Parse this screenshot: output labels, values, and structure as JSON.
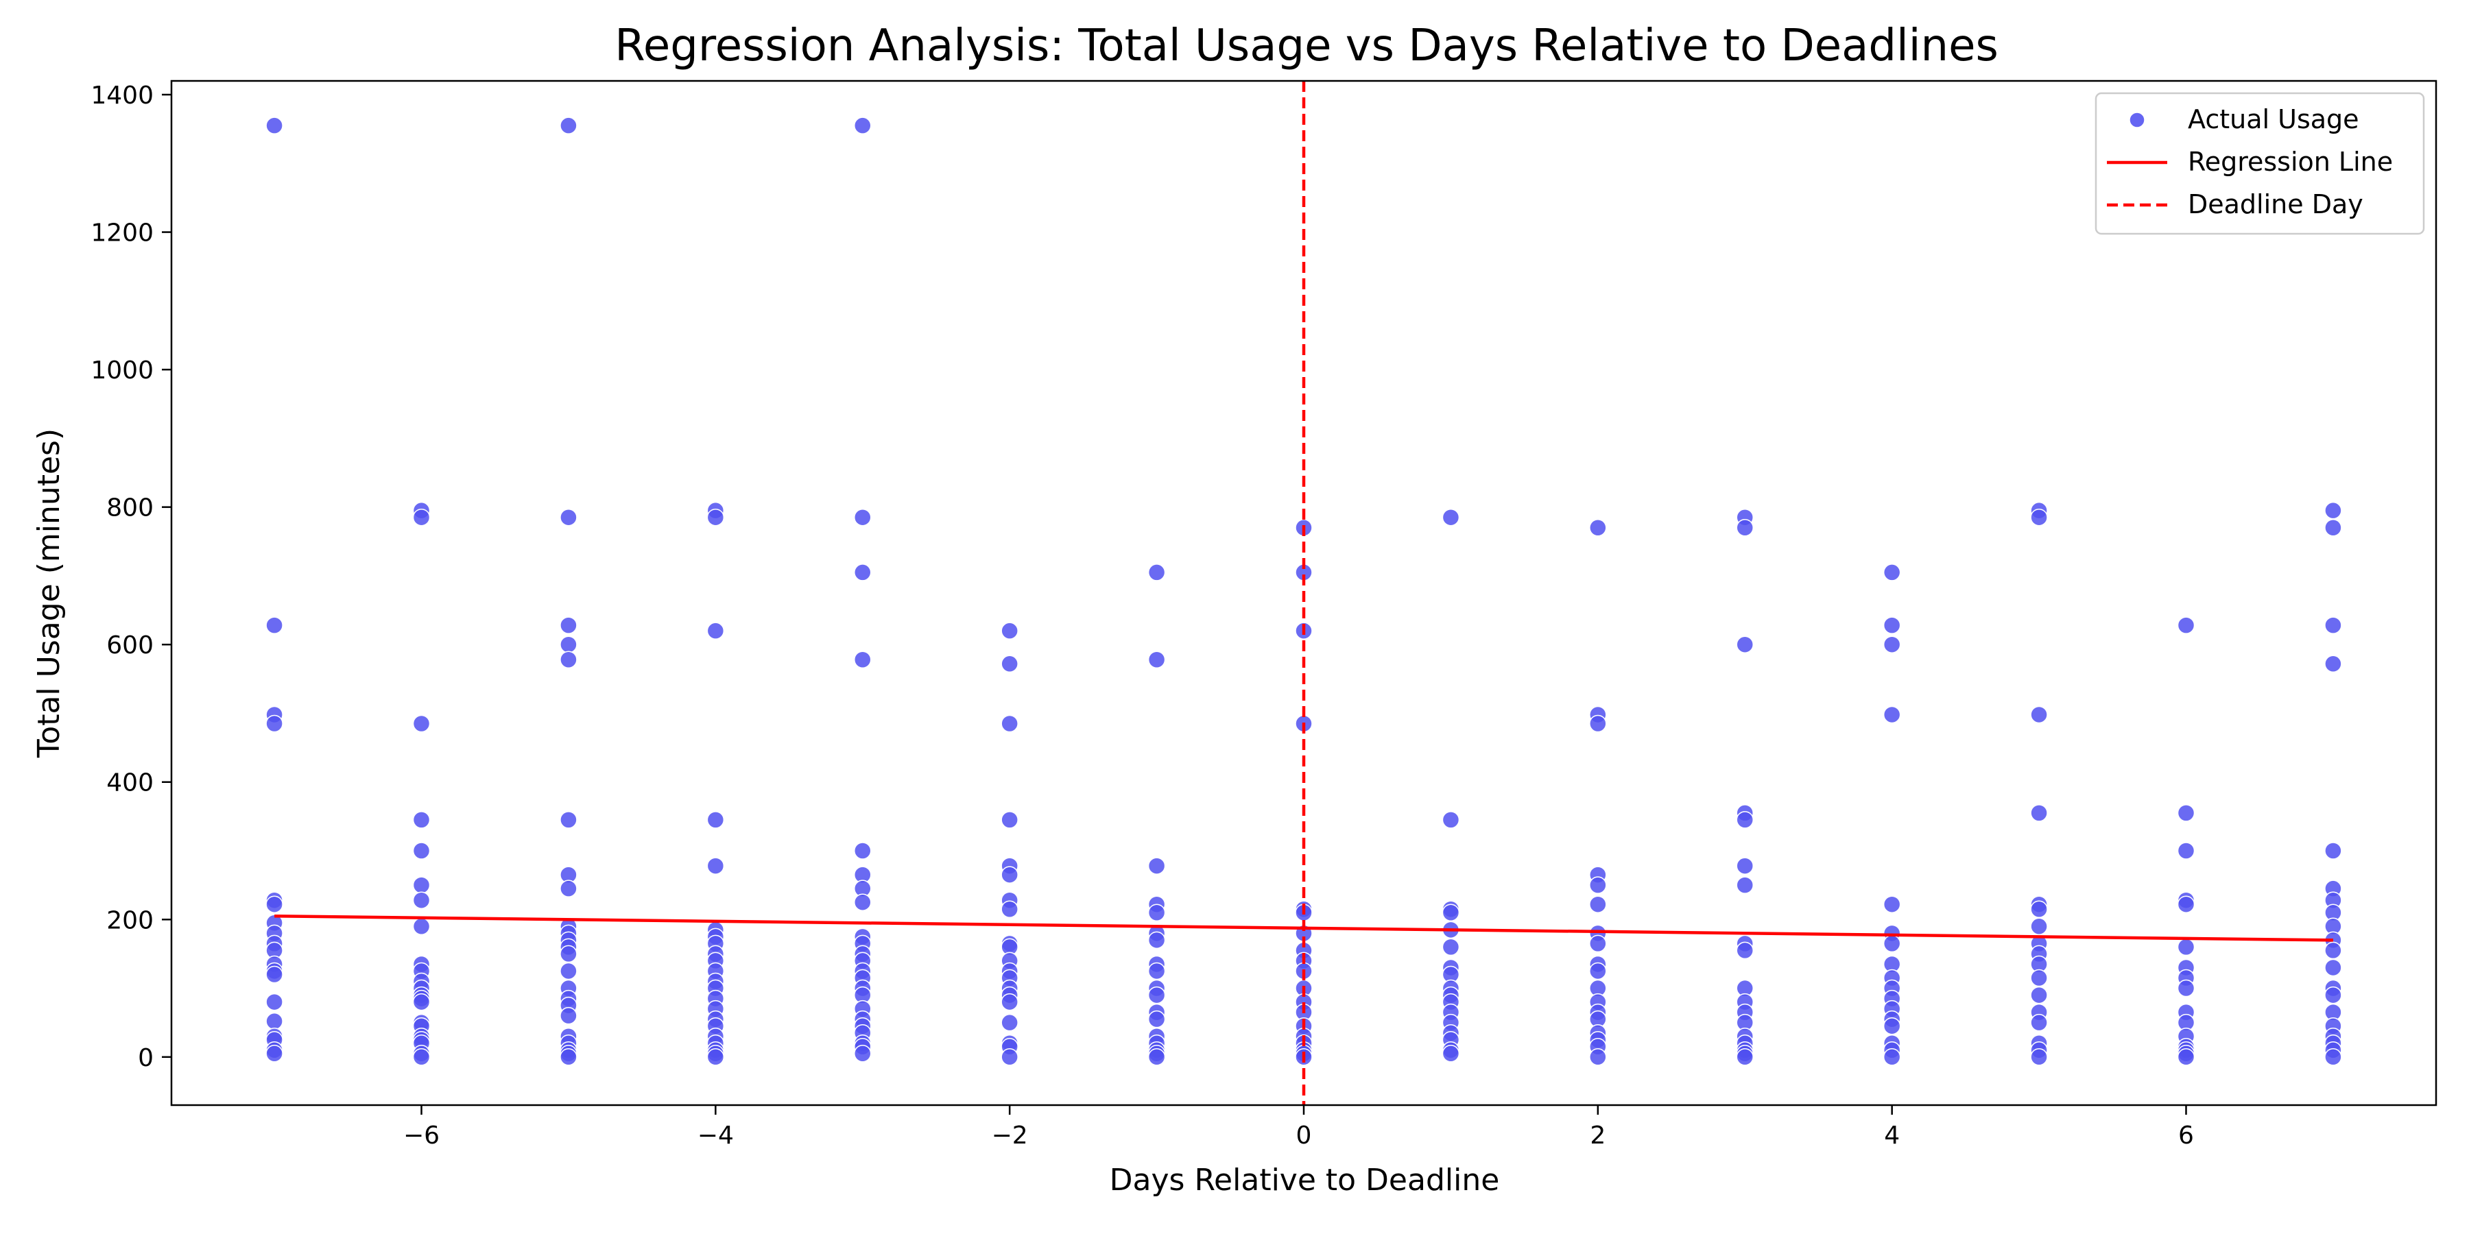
{
  "chart_data": {
    "type": "scatter",
    "title": "Regression Analysis: Total Usage vs Days Relative to Deadlines",
    "xlabel": "Days Relative to Deadline",
    "ylabel": "Total Usage (minutes)",
    "xlim": [
      -7.7,
      7.7
    ],
    "ylim": [
      -70,
      1420
    ],
    "xticks": [
      -6,
      -4,
      -2,
      0,
      2,
      4,
      6
    ],
    "xtick_labels": [
      "−6",
      "−4",
      "−2",
      "0",
      "2",
      "4",
      "6"
    ],
    "yticks": [
      0,
      200,
      400,
      600,
      800,
      1000,
      1200,
      1400
    ],
    "ytick_labels": [
      "0",
      "200",
      "400",
      "600",
      "800",
      "1000",
      "1200",
      "1400"
    ],
    "grid": false,
    "legend": {
      "placement": "top-right",
      "entries": [
        "Actual Usage",
        "Regression Line",
        "Deadline Day"
      ]
    },
    "colors": {
      "points": "#5050f0",
      "regression": "#ff0000",
      "deadline": "#ff0000"
    },
    "series": [
      {
        "name": "Actual Usage",
        "kind": "scatter",
        "points": [
          {
            "x": -7,
            "values": [
              1355,
              628,
              498,
              485,
              228,
              222,
              195,
              180,
              165,
              155,
              135,
              125,
              120,
              80,
              52,
              30,
              25,
              10,
              5
            ]
          },
          {
            "x": -6,
            "values": [
              795,
              785,
              485,
              345,
              300,
              250,
              228,
              190,
              135,
              125,
              110,
              100,
              90,
              85,
              80,
              50,
              45,
              30,
              25,
              20,
              5,
              0
            ]
          },
          {
            "x": -5,
            "values": [
              1355,
              785,
              628,
              600,
              578,
              345,
              265,
              245,
              190,
              180,
              170,
              160,
              150,
              125,
              100,
              85,
              75,
              60,
              30,
              20,
              10,
              5,
              0
            ]
          },
          {
            "x": -4,
            "values": [
              795,
              785,
              620,
              345,
              278,
              185,
              175,
              165,
              150,
              140,
              125,
              110,
              100,
              85,
              70,
              55,
              45,
              30,
              20,
              10,
              5,
              0
            ]
          },
          {
            "x": -3,
            "values": [
              1355,
              785,
              705,
              578,
              300,
              265,
              245,
              225,
              175,
              165,
              150,
              140,
              125,
              115,
              100,
              90,
              70,
              55,
              45,
              35,
              20,
              15,
              5
            ]
          },
          {
            "x": -2,
            "values": [
              620,
              572,
              485,
              345,
              278,
              265,
              228,
              215,
              165,
              160,
              140,
              125,
              115,
              100,
              90,
              80,
              50,
              20,
              15,
              0
            ]
          },
          {
            "x": -1,
            "values": [
              705,
              578,
              278,
              222,
              210,
              180,
              170,
              135,
              125,
              100,
              90,
              65,
              55,
              30,
              20,
              10,
              5,
              0
            ]
          },
          {
            "x": 0,
            "values": [
              770,
              705,
              620,
              485,
              215,
              210,
              180,
              155,
              140,
              125,
              100,
              80,
              65,
              45,
              30,
              20,
              10,
              5,
              0
            ]
          },
          {
            "x": 1,
            "values": [
              785,
              345,
              215,
              210,
              185,
              160,
              130,
              120,
              100,
              90,
              80,
              65,
              50,
              35,
              25,
              10,
              5
            ]
          },
          {
            "x": 2,
            "values": [
              770,
              498,
              485,
              265,
              250,
              222,
              180,
              165,
              135,
              125,
              100,
              80,
              65,
              55,
              35,
              25,
              15,
              0
            ]
          },
          {
            "x": 3,
            "values": [
              785,
              770,
              600,
              355,
              345,
              278,
              250,
              165,
              155,
              100,
              80,
              65,
              50,
              30,
              20,
              10,
              5,
              0
            ]
          },
          {
            "x": 4,
            "values": [
              705,
              628,
              600,
              498,
              222,
              180,
              165,
              135,
              115,
              100,
              85,
              70,
              55,
              45,
              20,
              10,
              0
            ]
          },
          {
            "x": 5,
            "values": [
              795,
              785,
              498,
              355,
              222,
              215,
              190,
              165,
              150,
              135,
              115,
              90,
              65,
              50,
              20,
              10,
              0
            ]
          },
          {
            "x": 6,
            "values": [
              628,
              355,
              300,
              228,
              222,
              160,
              130,
              115,
              100,
              65,
              50,
              30,
              15,
              10,
              5,
              0
            ]
          },
          {
            "x": 7,
            "values": [
              795,
              770,
              628,
              572,
              300,
              245,
              228,
              210,
              190,
              170,
              155,
              130,
              100,
              90,
              65,
              45,
              30,
              20,
              10,
              0
            ]
          }
        ]
      },
      {
        "name": "Regression Line",
        "kind": "line",
        "x": [
          -7,
          7
        ],
        "y": [
          205,
          170
        ]
      },
      {
        "name": "Deadline Day",
        "kind": "vline",
        "x": 0
      }
    ]
  }
}
